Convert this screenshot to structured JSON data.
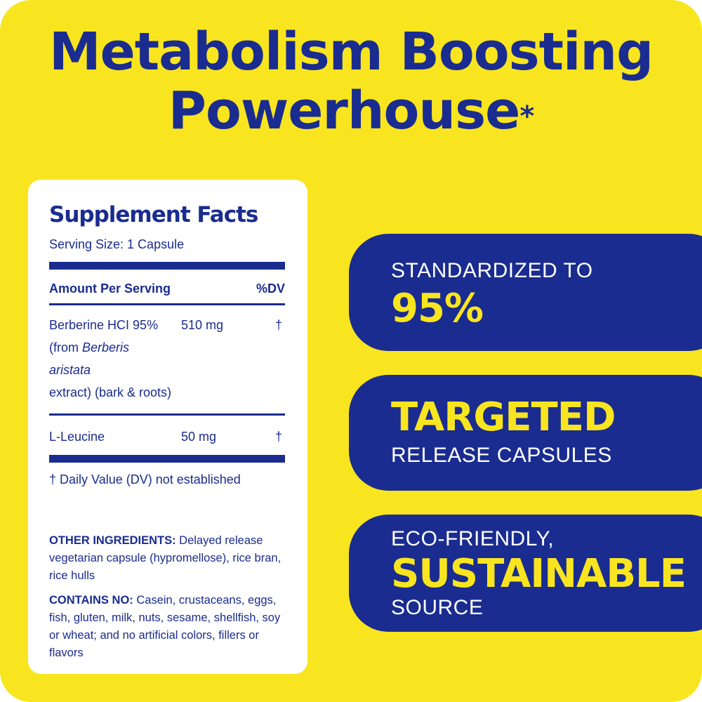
{
  "headline": {
    "line1": "Metabolism Boosting",
    "line2": "Powerhouse",
    "asterisk": "*"
  },
  "supplement_facts": {
    "title": "Supplement Facts",
    "serving_size": "Serving Size: 1 Capsule",
    "header_amount": "Amount Per Serving",
    "header_dv": "%DV",
    "ingredients": [
      {
        "name_line1": "Berberine HCI 95%",
        "name_line2_prefix": "(from ",
        "name_line2_italic": "Berberis aristata",
        "name_line3": "extract) (bark & roots)",
        "amount": "510 mg",
        "dv": "†"
      },
      {
        "name_line1": "L-Leucine",
        "amount": "50 mg",
        "dv": "†"
      }
    ],
    "footnote": "† Daily Value (DV) not established",
    "other_ingredients_label": "OTHER INGREDIENTS:",
    "other_ingredients_text": " Delayed release vegetarian capsule (hypromellose), rice bran, rice hulls",
    "contains_no_label": "CONTAINS NO:",
    "contains_no_text": " Casein, crustaceans, eggs, fish, gluten, milk, nuts, sesame, shellfish, soy or wheat; and no artificial colors, fillers or flavors"
  },
  "badges": [
    {
      "line1": "STANDARDIZED TO",
      "line2": "95%"
    },
    {
      "line1": "TARGETED",
      "line2": "RELEASE CAPSULES"
    },
    {
      "line1": "ECO-FRIENDLY,",
      "line2": "SUSTAINABLE",
      "line3": "SOURCE"
    }
  ],
  "colors": {
    "background": "#f9e51f",
    "brand_blue": "#1a2c8f",
    "panel": "#ffffff"
  }
}
